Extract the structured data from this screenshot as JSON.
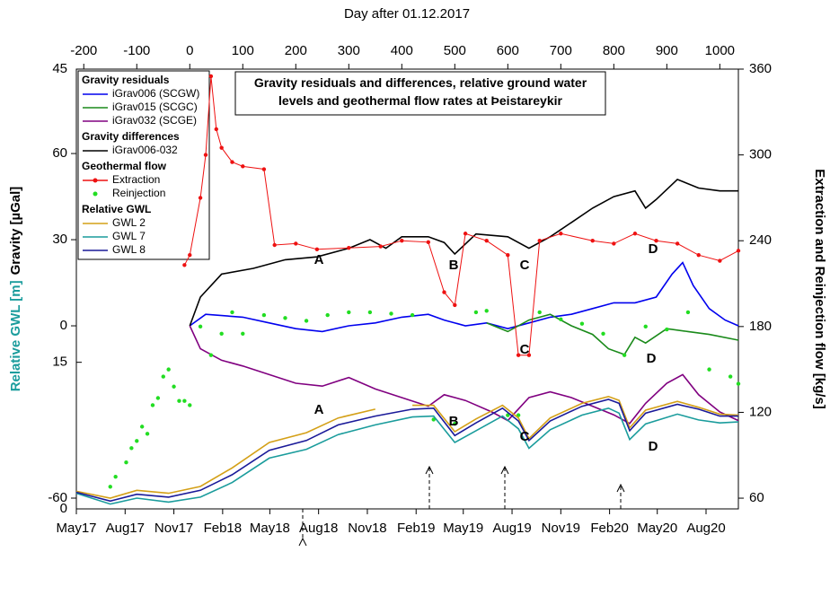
{
  "chart_data": {
    "type": "line",
    "title": "Gravity residuals and differences, relative ground water levels and geothermal flow rates at Þeistareykir",
    "x2_label": "Day after 01.12.2017",
    "y_label": "Gravity [µGal]",
    "gwl_label": "Relative GWL [m]",
    "y2_label": "Extraction and Reinjection flow [kg/s]",
    "xlim": [
      -214,
      1035
    ],
    "x2ticks": [
      -200,
      -100,
      0,
      100,
      200,
      300,
      400,
      500,
      600,
      700,
      800,
      900,
      1000
    ],
    "xticks": [
      {
        "value": -214,
        "label": "May17"
      },
      {
        "value": -122,
        "label": "Aug17"
      },
      {
        "value": -30,
        "label": "Nov17"
      },
      {
        "value": 62,
        "label": "Feb18"
      },
      {
        "value": 151,
        "label": "May18"
      },
      {
        "value": 243,
        "label": "Aug18"
      },
      {
        "value": 335,
        "label": "Nov18"
      },
      {
        "value": 427,
        "label": "Feb19"
      },
      {
        "value": 516,
        "label": "May19"
      },
      {
        "value": 608,
        "label": "Aug19"
      },
      {
        "value": 700,
        "label": "Nov19"
      },
      {
        "value": 792,
        "label": "Feb20"
      },
      {
        "value": 882,
        "label": "May20"
      },
      {
        "value": 974,
        "label": "Aug20"
      }
    ],
    "ylim": [
      -63.75,
      89.4
    ],
    "yticks": [
      -60,
      0,
      30,
      60
    ],
    "gwl_lim": [
      0,
      45
    ],
    "gwl_ticks": [
      0,
      15,
      45
    ],
    "gwl_color": "#1a9c9c",
    "y2lim": [
      52.5,
      360
    ],
    "y2ticks": [
      60,
      120,
      180,
      240,
      300,
      360
    ],
    "series": [
      {
        "name": "iGrav006 (SCGW)",
        "group": "Gravity residuals",
        "color": "#0000ee",
        "axis": "y",
        "style": "line",
        "x": [
          0,
          30,
          100,
          150,
          200,
          250,
          300,
          350,
          400,
          450,
          480,
          520,
          560,
          600,
          640,
          680,
          720,
          760,
          800,
          840,
          880,
          910,
          930,
          950,
          980,
          1010,
          1035
        ],
        "values": [
          0,
          4,
          3,
          1,
          -1,
          -2,
          0,
          1,
          3,
          4,
          2,
          0,
          1,
          -1,
          1,
          3,
          4,
          6,
          8,
          8,
          10,
          18,
          22,
          14,
          6,
          2,
          0
        ]
      },
      {
        "name": "iGrav015 (SCGC)",
        "group": "Gravity residuals",
        "color": "#1a8a1a",
        "axis": "y",
        "style": "line",
        "x": [
          560,
          600,
          640,
          680,
          720,
          760,
          790,
          820,
          840,
          860,
          900,
          940,
          980,
          1035
        ],
        "values": [
          1,
          -2,
          2,
          4,
          0,
          -3,
          -8,
          -10,
          -4,
          -6,
          -1,
          -2,
          -3,
          -5
        ]
      },
      {
        "name": "iGrav032 (SCGE)",
        "group": "Gravity residuals",
        "color": "#800080",
        "axis": "y",
        "style": "line",
        "x": [
          0,
          20,
          60,
          100,
          150,
          200,
          250,
          300,
          350,
          400,
          450,
          480,
          520,
          570,
          600,
          640,
          680,
          720,
          760,
          800,
          830,
          860,
          900,
          930,
          960,
          1000,
          1035
        ],
        "values": [
          0,
          -8,
          -12,
          -14,
          -17,
          -20,
          -21,
          -18,
          -22,
          -25,
          -28,
          -24,
          -26,
          -30,
          -33,
          -25,
          -23,
          -25,
          -28,
          -31,
          -34,
          -27,
          -20,
          -17,
          -24,
          -30,
          -33
        ]
      },
      {
        "name": "iGrav006-032",
        "group": "Gravity differences",
        "color": "#000000",
        "axis": "y",
        "style": "line",
        "x": [
          0,
          20,
          60,
          120,
          180,
          240,
          300,
          340,
          370,
          400,
          450,
          480,
          500,
          540,
          600,
          640,
          680,
          720,
          760,
          800,
          840,
          860,
          880,
          920,
          960,
          1000,
          1035
        ],
        "values": [
          0,
          10,
          18,
          20,
          23,
          24,
          27,
          30,
          27,
          31,
          31,
          29,
          25,
          32,
          31,
          27,
          31,
          36,
          41,
          45,
          47,
          41,
          44,
          51,
          48,
          47,
          47
        ]
      },
      {
        "name": "Extraction",
        "group": "Geothermal flow",
        "color": "#ee1111",
        "axis": "y2",
        "style": "line-markers",
        "x": [
          -10,
          0,
          20,
          30,
          40,
          50,
          60,
          80,
          100,
          140,
          160,
          200,
          240,
          300,
          360,
          400,
          450,
          480,
          500,
          520,
          560,
          600,
          620,
          640,
          660,
          700,
          760,
          800,
          840,
          880,
          920,
          960,
          1000,
          1035
        ],
        "values": [
          223,
          230,
          270,
          300,
          355,
          318,
          305,
          295,
          292,
          290,
          237,
          238,
          234,
          235,
          236,
          240,
          239,
          204,
          195,
          245,
          240,
          230,
          160,
          160,
          240,
          245,
          240,
          238,
          245,
          240,
          238,
          230,
          226,
          233
        ]
      },
      {
        "name": "Reinjection",
        "group": "Geothermal flow",
        "color": "#22dd22",
        "axis": "y2",
        "style": "points",
        "x": [
          -150,
          -140,
          -120,
          -110,
          -100,
          -90,
          -80,
          -70,
          -60,
          -50,
          -40,
          -30,
          -20,
          -10,
          0,
          20,
          40,
          60,
          80,
          100,
          140,
          180,
          220,
          260,
          300,
          340,
          380,
          420,
          460,
          500,
          540,
          560,
          600,
          620,
          660,
          700,
          740,
          780,
          820,
          860,
          900,
          940,
          980,
          1020,
          1035
        ],
        "values": [
          68,
          75,
          85,
          95,
          100,
          110,
          105,
          125,
          130,
          145,
          150,
          138,
          128,
          128,
          125,
          180,
          160,
          175,
          190,
          175,
          188,
          186,
          184,
          188,
          190,
          190,
          189,
          188,
          115,
          112,
          190,
          191,
          118,
          118,
          190,
          185,
          182,
          175,
          160,
          180,
          178,
          190,
          150,
          145,
          140
        ]
      },
      {
        "name": "GWL 2",
        "group": "Relative GWL",
        "color": "#d4a017",
        "axis": "gwl",
        "style": "line",
        "x": [
          -214,
          -150,
          -100,
          -40,
          20,
          80,
          150,
          220,
          280,
          350,
          380,
          420,
          460,
          500,
          540,
          590,
          620,
          640,
          680,
          740,
          790,
          810,
          830,
          860,
          920,
          960,
          1000,
          1035
        ],
        "values": [
          1.8,
          1.1,
          1.9,
          1.6,
          2.3,
          4.2,
          6.8,
          7.8,
          9.3,
          10.2,
          null,
          10.6,
          10.6,
          7.9,
          9.2,
          10.6,
          9.3,
          7.2,
          9.3,
          10.8,
          11.5,
          11.1,
          8.3,
          10.1,
          11,
          10.4,
          9.7,
          9.6
        ]
      },
      {
        "name": "GWL 7",
        "group": "Relative GWL",
        "color": "#1a9c9c",
        "axis": "gwl",
        "style": "line",
        "x": [
          -214,
          -150,
          -100,
          -40,
          20,
          80,
          150,
          220,
          280,
          350,
          420,
          460,
          500,
          540,
          590,
          620,
          640,
          680,
          740,
          790,
          810,
          830,
          860,
          920,
          960,
          1000,
          1035
        ],
        "values": [
          1.6,
          0.5,
          1.1,
          0.7,
          1.2,
          2.7,
          5.2,
          6.1,
          7.6,
          8.6,
          9.4,
          9.5,
          6.8,
          8,
          9.5,
          8.2,
          6.2,
          8.1,
          9.6,
          10.3,
          9.8,
          7.1,
          8.7,
          9.7,
          9.1,
          8.8,
          8.9
        ]
      },
      {
        "name": "GWL 8",
        "group": "Relative GWL",
        "color": "#1a1a99",
        "axis": "gwl",
        "style": "line",
        "x": [
          -214,
          -150,
          -100,
          -40,
          20,
          80,
          150,
          220,
          280,
          350,
          420,
          460,
          500,
          540,
          590,
          620,
          640,
          680,
          740,
          790,
          810,
          830,
          860,
          920,
          960,
          1000,
          1035
        ],
        "values": [
          1.7,
          0.8,
          1.5,
          1.2,
          1.9,
          3.5,
          6,
          7,
          8.6,
          9.5,
          10.2,
          10.3,
          7.5,
          8.8,
          10.3,
          9,
          7,
          9,
          10.5,
          11.2,
          10.8,
          8,
          9.8,
          10.7,
          10.2,
          9.5,
          9.5
        ]
      }
    ],
    "annotations": [
      {
        "text": "A",
        "color": "#000000"
      },
      {
        "text": "B",
        "color": "#000000"
      },
      {
        "text": "C",
        "color": "#000000"
      },
      {
        "text": "D",
        "color": "#000000"
      },
      {
        "text": "C",
        "color": "#1a8a1a"
      },
      {
        "text": "D",
        "color": "#1a8a1a"
      },
      {
        "text": "A",
        "color": "#800080"
      },
      {
        "text": "B",
        "color": "#800080"
      },
      {
        "text": "C",
        "color": "#800080"
      },
      {
        "text": "D",
        "color": "#800080"
      }
    ]
  }
}
